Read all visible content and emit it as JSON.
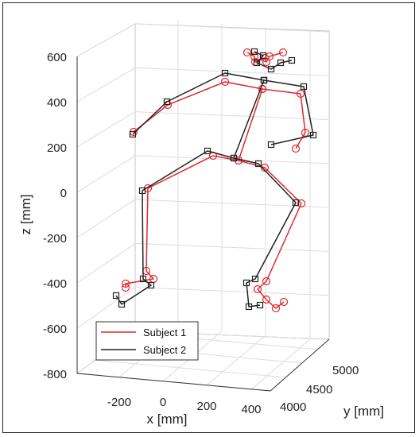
{
  "chart_data": {
    "type": "line3d",
    "xlabel": "x [mm]",
    "ylabel": "y [mm]",
    "zlabel": "z [mm]",
    "z_ticks": [
      "600",
      "400",
      "200",
      "0",
      "-200",
      "-400",
      "-600",
      "-800"
    ],
    "x_ticks": [
      "-200",
      "0",
      "200",
      "400"
    ],
    "y_ticks": [
      "5000",
      "4500",
      "4000"
    ],
    "grid": true,
    "legend_position": "bottom-left",
    "series": [
      {
        "name": "Subject 1",
        "color": "#e0282d",
        "marker": "circle",
        "segments": [
          [
            [
              311,
              66
            ],
            [
              320,
              71
            ],
            [
              321,
              78
            ],
            [
              333,
              73
            ],
            [
              335,
              78
            ],
            [
              339,
              71
            ],
            [
              356,
              66
            ]
          ],
          [
            [
              330,
              112
            ],
            [
              283,
              103
            ],
            [
              211,
              132
            ],
            [
              168,
              166
            ]
          ],
          [
            [
              330,
              112
            ],
            [
              378,
              118
            ],
            [
              384,
              167
            ],
            [
              372,
              187
            ]
          ],
          [
            [
              330,
              112
            ],
            [
              300,
              202
            ],
            [
              268,
              196
            ],
            [
              186,
              237
            ],
            [
              184,
              341
            ],
            [
              193,
              351
            ],
            [
              158,
              357
            ],
            [
              158,
              362
            ]
          ],
          [
            [
              300,
              202
            ],
            [
              333,
              211
            ],
            [
              379,
              256
            ],
            [
              335,
              354
            ],
            [
              324,
              364
            ],
            [
              335,
              377
            ],
            [
              347,
              388
            ],
            [
              357,
              380
            ]
          ]
        ]
      },
      {
        "name": "Subject 2",
        "color": "#222222",
        "marker": "square",
        "segments": [
          [
            [
              320,
              65
            ],
            [
              331,
              70
            ],
            [
              323,
              79
            ],
            [
              341,
              87
            ],
            [
              353,
              79
            ],
            [
              367,
              76
            ]
          ],
          [
            [
              332,
              101
            ],
            [
              283,
              92
            ],
            [
              210,
              128
            ],
            [
              167,
              169
            ]
          ],
          [
            [
              332,
              101
            ],
            [
              382,
              109
            ],
            [
              394,
              170
            ],
            [
              341,
              182
            ]
          ],
          [
            [
              332,
              101
            ],
            [
              294,
              199
            ],
            [
              261,
              190
            ],
            [
              179,
              240
            ],
            [
              180,
              351
            ],
            [
              190,
              359
            ],
            [
              153,
              383
            ],
            [
              146,
              372
            ]
          ],
          [
            [
              294,
              199
            ],
            [
              325,
              206
            ],
            [
              372,
              255
            ],
            [
              321,
              351
            ],
            [
              310,
              356
            ],
            [
              313,
              386
            ],
            [
              327,
              384
            ]
          ]
        ]
      }
    ]
  }
}
